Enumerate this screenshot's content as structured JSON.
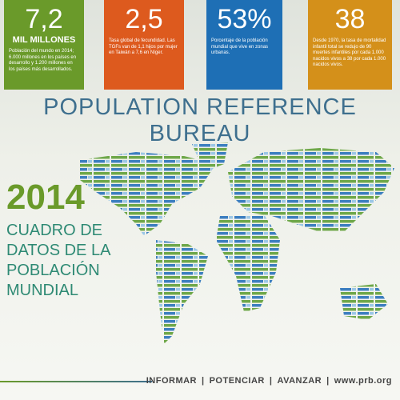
{
  "stats": [
    {
      "value": "7,2",
      "unit": "MIL MILLONES",
      "description": "Población del mundo en 2014; 6.000 millones en los países en desarrollo y 1.200 millones en los países más desarrollados."
    },
    {
      "value": "2,5",
      "description": "Tasa global de fecundidad. Las TGFs van de 1,1 hijos por mujer en Taiwán a 7,6 en Níger."
    },
    {
      "value": "53%",
      "description": "Porcentaje de la población mundial que vive en zonas urbanas."
    },
    {
      "value": "38",
      "description": "Desde 1970, la tasa de mortalidad infantil total se redujo de 90 muertes infantiles por cada 1.000 nacidos vivos a 38 por cada 1.000 nacidos vivos."
    }
  ],
  "title": "POPULATION REFERENCE BUREAU",
  "year": "2014",
  "subtitle_lines": [
    "CUADRO DE",
    "DATOS DE LA",
    "POBLACIÓN",
    "MUNDIAL"
  ],
  "footer": {
    "links": [
      "INFORMAR",
      "POTENCIAR",
      "AVANZAR"
    ],
    "url": "www.prb.org"
  }
}
